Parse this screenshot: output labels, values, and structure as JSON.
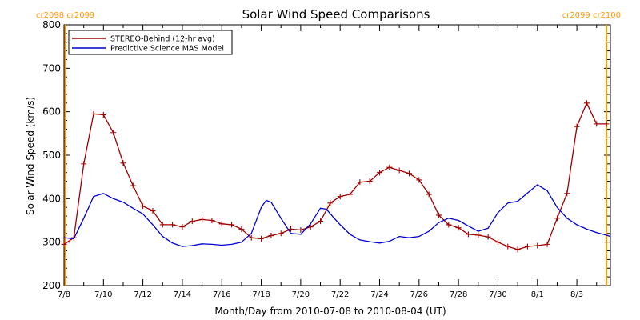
{
  "chart_data": {
    "type": "line",
    "title": "Solar Wind Speed Comparisons",
    "xlabel": "Month/Day from 2010-07-08 to 2010-08-04 (UT)",
    "ylabel": "Solar Wind Speed (km/s)",
    "xlim_days": [
      0,
      27.7
    ],
    "ylim": [
      200,
      800
    ],
    "yticks": [
      200,
      300,
      400,
      500,
      600,
      700,
      800
    ],
    "xticks": [
      {
        "day": 0,
        "label": "7/8"
      },
      {
        "day": 2,
        "label": "7/10"
      },
      {
        "day": 4,
        "label": "7/12"
      },
      {
        "day": 6,
        "label": "7/14"
      },
      {
        "day": 8,
        "label": "7/16"
      },
      {
        "day": 10,
        "label": "7/18"
      },
      {
        "day": 12,
        "label": "7/20"
      },
      {
        "day": 14,
        "label": "7/22"
      },
      {
        "day": 16,
        "label": "7/24"
      },
      {
        "day": 18,
        "label": "7/26"
      },
      {
        "day": 20,
        "label": "7/28"
      },
      {
        "day": 22,
        "label": "7/30"
      },
      {
        "day": 24,
        "label": "8/1"
      },
      {
        "day": 26,
        "label": "8/3"
      }
    ],
    "legend_position": "top-left",
    "series": [
      {
        "name": "STEREO-Behind (12-hr avg)",
        "color": "#a00000",
        "markers": true,
        "x": [
          0.0,
          0.5,
          1.0,
          1.5,
          2.0,
          2.5,
          3.0,
          3.5,
          4.0,
          4.5,
          5.0,
          5.5,
          6.0,
          6.5,
          7.0,
          7.5,
          8.0,
          8.5,
          9.0,
          9.5,
          10.0,
          10.5,
          11.0,
          11.5,
          12.0,
          12.5,
          13.0,
          13.5,
          14.0,
          14.5,
          15.0,
          15.5,
          16.0,
          16.5,
          17.0,
          17.5,
          18.0,
          18.5,
          19.0,
          19.5,
          20.0,
          20.5,
          21.0,
          21.5,
          22.0,
          22.5,
          23.0,
          23.5,
          24.0,
          24.5,
          25.0,
          25.5,
          26.0,
          26.5,
          27.0,
          27.5
        ],
        "y": [
          295,
          310,
          480,
          595,
          593,
          552,
          482,
          430,
          383,
          372,
          340,
          340,
          335,
          348,
          352,
          350,
          342,
          340,
          330,
          310,
          308,
          315,
          320,
          330,
          328,
          335,
          348,
          390,
          405,
          410,
          438,
          440,
          460,
          472,
          465,
          458,
          443,
          410,
          362,
          340,
          333,
          318,
          316,
          312,
          300,
          290,
          283,
          290,
          292,
          295,
          355,
          412,
          566,
          620,
          572,
          572
        ]
      },
      {
        "name": "Predictive Science MAS Model",
        "color": "#0000cc",
        "markers": false,
        "x": [
          0.0,
          0.5,
          1.0,
          1.5,
          2.0,
          2.5,
          3.0,
          3.5,
          4.0,
          4.5,
          5.0,
          5.5,
          6.0,
          6.5,
          7.0,
          7.5,
          8.0,
          8.5,
          9.0,
          9.5,
          10.0,
          10.25,
          10.5,
          11.0,
          11.5,
          12.0,
          12.5,
          13.0,
          13.3,
          13.7,
          14.0,
          14.5,
          15.0,
          15.5,
          16.0,
          16.5,
          17.0,
          17.5,
          18.0,
          18.5,
          19.0,
          19.5,
          20.0,
          20.5,
          21.0,
          21.5,
          22.0,
          22.5,
          23.0,
          23.5,
          24.0,
          24.5,
          25.0,
          25.5,
          26.0,
          26.5,
          27.0,
          27.5,
          27.7
        ],
        "y": [
          310,
          308,
          355,
          405,
          412,
          400,
          392,
          378,
          365,
          340,
          313,
          298,
          290,
          292,
          296,
          295,
          293,
          295,
          300,
          320,
          380,
          396,
          392,
          355,
          320,
          318,
          342,
          378,
          376,
          355,
          340,
          318,
          305,
          301,
          298,
          302,
          313,
          310,
          313,
          325,
          345,
          355,
          350,
          337,
          325,
          332,
          368,
          390,
          394,
          413,
          432,
          418,
          380,
          355,
          340,
          330,
          322,
          316,
          313
        ]
      }
    ],
    "annotations": {
      "left_label": "cr2098 cr2099",
      "right_label": "cr2099 cr2100",
      "left_marker_day": 0.0,
      "right_marker_day": 27.5,
      "marker_color": "#ff9900"
    }
  }
}
